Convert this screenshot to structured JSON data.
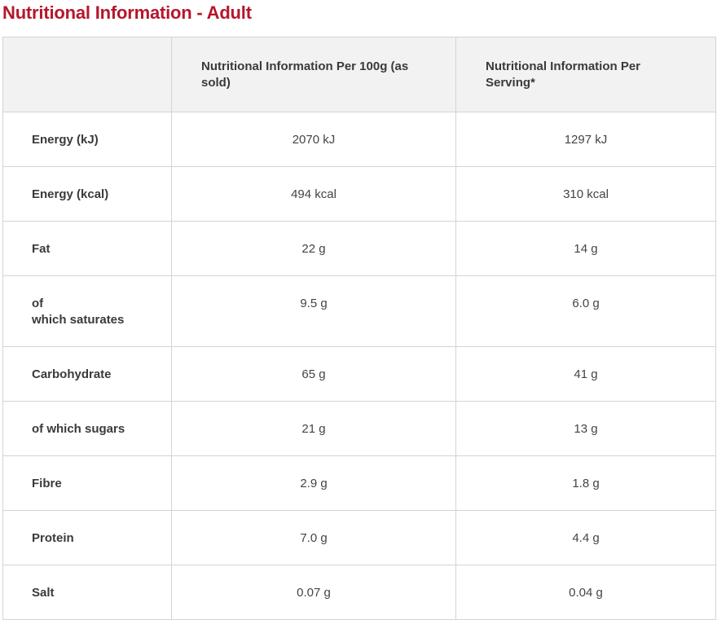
{
  "title": "Nutritional Information - Adult",
  "columns": {
    "blank": "",
    "per_100g": "Nutritional Information Per 100g (as sold)",
    "per_serving": "Nutritional Information Per Serving*"
  },
  "rows": [
    {
      "label": "Energy (kJ)",
      "per_100g": "2070 kJ",
      "per_serving": "1297 kJ"
    },
    {
      "label": "Energy (kcal)",
      "per_100g": "494 kcal",
      "per_serving": "310 kcal"
    },
    {
      "label": "Fat",
      "per_100g": "22 g",
      "per_serving": "14 g"
    },
    {
      "label_lines": [
        "of",
        "which saturates"
      ],
      "per_100g": "9.5 g",
      "per_serving": "6.0 g"
    },
    {
      "label": "Carbohydrate",
      "per_100g": "65 g",
      "per_serving": "41 g"
    },
    {
      "label": "of which sugars",
      "per_100g": "21 g",
      "per_serving": "13 g"
    },
    {
      "label": "Fibre",
      "per_100g": "2.9 g",
      "per_serving": "1.8 g"
    },
    {
      "label": "Protein",
      "per_100g": "7.0 g",
      "per_serving": "4.4 g"
    },
    {
      "label": "Salt",
      "per_100g": "0.07 g",
      "per_serving": "0.04 g"
    }
  ],
  "colors": {
    "title": "#b5172b",
    "header_background": "#f2f2f2",
    "border": "#d4d4d4"
  }
}
